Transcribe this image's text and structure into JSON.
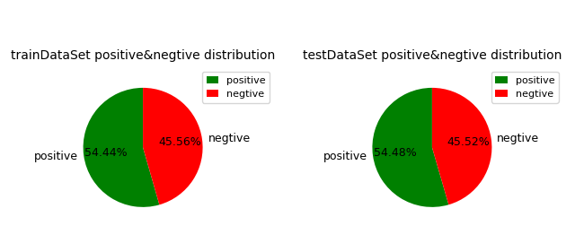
{
  "chart_data": [
    {
      "type": "pie",
      "title": "trainDataSet positive&negtive distribution",
      "categories": [
        "positive",
        "negtive"
      ],
      "values": [
        54.44,
        45.56
      ],
      "value_labels": [
        "54.44%",
        "45.56%"
      ],
      "colors": [
        "#008000",
        "#ff0000"
      ],
      "data_labels": true,
      "legend": "upper right"
    },
    {
      "type": "pie",
      "title": "testDataSet positive&negtive distribution",
      "categories": [
        "positive",
        "negtive"
      ],
      "values": [
        54.48,
        45.52
      ],
      "value_labels": [
        "54.48%",
        "45.52%"
      ],
      "colors": [
        "#008000",
        "#ff0000"
      ],
      "data_labels": true,
      "legend": "upper right"
    }
  ]
}
